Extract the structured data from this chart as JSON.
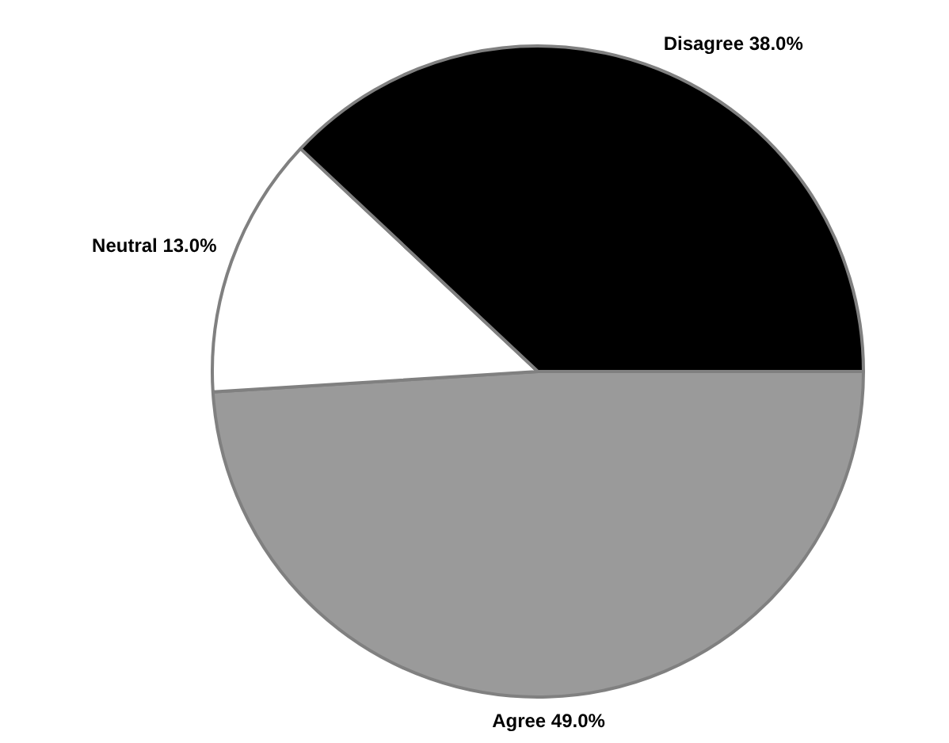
{
  "chart_data": {
    "type": "pie",
    "categories": [
      "Agree",
      "Neutral",
      "Disagree"
    ],
    "values": [
      49.0,
      13.0,
      38.0
    ],
    "colors": [
      "#9a9a9a",
      "#ffffff",
      "#000000"
    ],
    "value_labels": [
      "49.0%",
      "13.0%",
      "38.0%"
    ],
    "legend": false
  }
}
